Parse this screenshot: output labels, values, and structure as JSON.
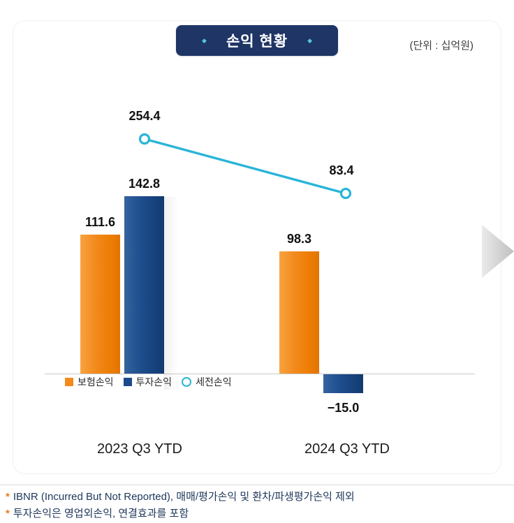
{
  "header": {
    "title": "손익 현황",
    "unit_label": "(단위 : 십억원)",
    "diamond": "◆",
    "badge_color": "#1E3566"
  },
  "chart_data": {
    "type": "bar",
    "title": "손익 현황",
    "unit": "십억원",
    "categories": [
      "2023 Q3 YTD",
      "2024 Q3 YTD"
    ],
    "series": [
      {
        "name": "보험손익",
        "type": "bar",
        "color": "#F28A1E",
        "values": [
          111.6,
          98.3
        ],
        "labels": [
          "111.6",
          "98.3"
        ]
      },
      {
        "name": "투자손익",
        "type": "bar",
        "color": "#1C4B8C",
        "values": [
          142.8,
          -15.0
        ],
        "labels": [
          "142.8",
          "−15.0"
        ]
      },
      {
        "name": "세전손익",
        "type": "line",
        "color": "#29B5D8",
        "values": [
          254.4,
          83.4
        ],
        "labels": [
          "254.4",
          "83.4"
        ]
      }
    ],
    "legend": [
      "보험손익",
      "투자손익",
      "세전손익"
    ],
    "legend_position": "bottom-left",
    "grid": false,
    "baseline": 0
  },
  "nav": {
    "next_arrow": "chevron-right"
  },
  "footnotes": [
    {
      "marker": "*",
      "text": "IBNR (Incurred But Not Reported), 매매/평가손익 및 환차/파생평가손익 제외"
    },
    {
      "marker": "*",
      "text": "투자손익은 영업외손익, 연결효과를 포함"
    }
  ]
}
